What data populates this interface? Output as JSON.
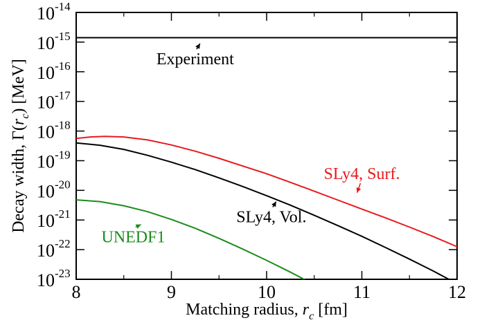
{
  "chart_data": {
    "type": "line",
    "xlabel": "Matching radius, ",
    "xlabel_var": "r",
    "xlabel_sub": "c",
    "xlabel_unit": " [fm]",
    "ylabel": "Decay width, Γ(",
    "ylabel_var": "r",
    "ylabel_sub": "c",
    "ylabel_unit": ") [MeV]",
    "xlim": [
      8,
      12
    ],
    "ylim_log10": [
      -23,
      -14
    ],
    "y_scale": "log",
    "grid": false,
    "x_ticks": [
      "8",
      "9",
      "10",
      "11",
      "12"
    ],
    "y_tick_base": "10",
    "y_tick_exponents": [
      "-23",
      "-22",
      "-21",
      "-20",
      "-19",
      "-18",
      "-17",
      "-16",
      "-15",
      "-14"
    ],
    "series": [
      {
        "name": "Experiment",
        "color": "#000000",
        "x": [
          8,
          12
        ],
        "log10_y": [
          -14.85,
          -14.85
        ],
        "label_x": 9.25,
        "label_log10_y": -15.75,
        "arrow_to_x": 9.3,
        "arrow_to_log10_y": -15.05
      },
      {
        "name": "SLy4, Surf.",
        "color": "#e8191c",
        "x": [
          8.0,
          8.15,
          8.3,
          8.5,
          8.75,
          9.0,
          9.25,
          9.5,
          9.75,
          10.0,
          10.25,
          10.5,
          10.75,
          11.0,
          11.25,
          11.5,
          11.75,
          12.0
        ],
        "log10_y": [
          -18.25,
          -18.2,
          -18.18,
          -18.2,
          -18.3,
          -18.47,
          -18.68,
          -18.92,
          -19.18,
          -19.44,
          -19.73,
          -20.03,
          -20.33,
          -20.63,
          -20.93,
          -21.24,
          -21.56,
          -21.9
        ],
        "label_x": 11.0,
        "label_log10_y": -19.62,
        "arrow_to_x": 10.95,
        "arrow_to_log10_y": -20.08
      },
      {
        "name": "SLy4, Vol.",
        "color": "#000000",
        "x": [
          8.0,
          8.25,
          8.5,
          8.75,
          9.0,
          9.25,
          9.5,
          9.75,
          10.0,
          10.25,
          10.5,
          10.75,
          11.0,
          11.25,
          11.5,
          11.75,
          12.0
        ],
        "log10_y": [
          -18.4,
          -18.48,
          -18.62,
          -18.82,
          -19.05,
          -19.3,
          -19.58,
          -19.87,
          -20.18,
          -20.5,
          -20.84,
          -21.19,
          -21.55,
          -21.93,
          -22.32,
          -22.72,
          -23.15
        ],
        "label_x": 10.05,
        "label_log10_y": -21.08,
        "arrow_to_x": 10.1,
        "arrow_to_log10_y": -20.38
      },
      {
        "name": "UNEDF1",
        "color": "#1a8c1a",
        "x": [
          8.0,
          8.25,
          8.5,
          8.75,
          9.0,
          9.25,
          9.5,
          9.75,
          10.0,
          10.25,
          10.5,
          10.6
        ],
        "log10_y": [
          -20.32,
          -20.38,
          -20.52,
          -20.72,
          -20.98,
          -21.28,
          -21.62,
          -21.98,
          -22.36,
          -22.76,
          -23.18,
          -23.38
        ],
        "label_x": 8.6,
        "label_log10_y": -21.75,
        "arrow_to_x": 8.68,
        "arrow_to_log10_y": -21.15
      }
    ]
  }
}
